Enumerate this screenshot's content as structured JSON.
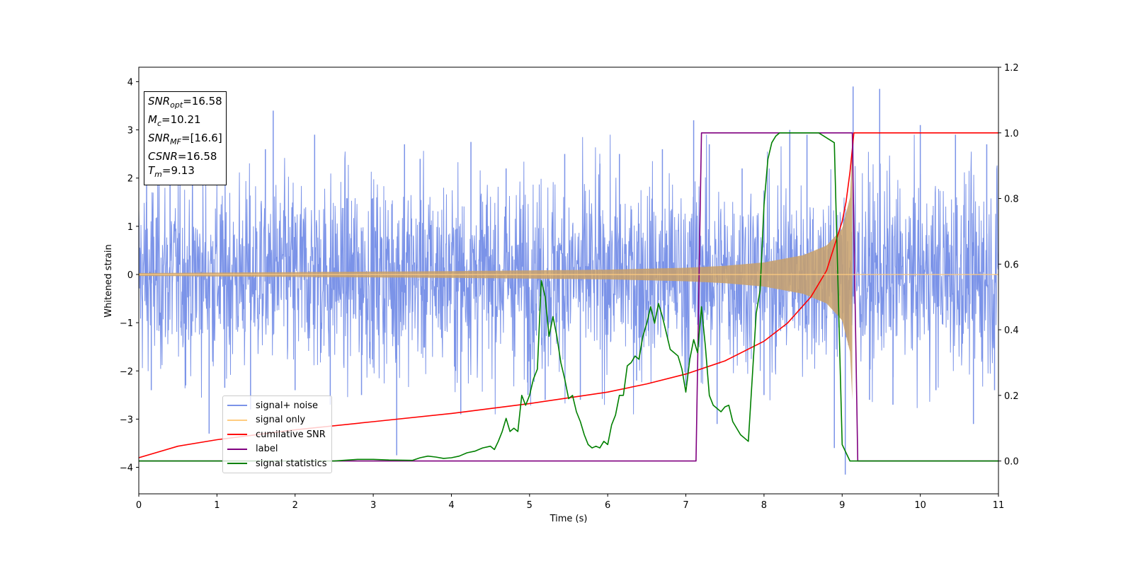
{
  "chart_data": {
    "type": "line",
    "xlabel": "Time (s)",
    "ylabel": "Whitened strain",
    "xlim": [
      0,
      11
    ],
    "ylim": [
      -4.55,
      4.3
    ],
    "y2lim": [
      -0.1,
      1.2
    ],
    "xticks": [
      "0",
      "1",
      "2",
      "3",
      "4",
      "5",
      "6",
      "7",
      "8",
      "9",
      "10",
      "11"
    ],
    "yticks": [
      {
        "value": 4,
        "label": "4"
      },
      {
        "value": 3,
        "label": "3"
      },
      {
        "value": 2,
        "label": "2"
      },
      {
        "value": 1,
        "label": "1"
      },
      {
        "value": 0,
        "label": "0"
      },
      {
        "value": -1,
        "label": "−1"
      },
      {
        "value": -2,
        "label": "−2"
      },
      {
        "value": -3,
        "label": "−3"
      },
      {
        "value": -4,
        "label": "−4"
      }
    ],
    "y2ticks": [
      {
        "value": 1.2,
        "label": "1.2"
      },
      {
        "value": 1.0,
        "label": "1.0"
      },
      {
        "value": 0.8,
        "label": "0.8"
      },
      {
        "value": 0.6,
        "label": "0.6"
      },
      {
        "value": 0.4,
        "label": "0.4"
      },
      {
        "value": 0.2,
        "label": "0.2"
      },
      {
        "value": 0.0,
        "label": "0.0"
      }
    ],
    "grid": false,
    "legend_position": "lower-left",
    "noise_spikes": [
      {
        "x": 0.1,
        "y": 2.0
      },
      {
        "x": 0.16,
        "y": -2.4
      },
      {
        "x": 0.4,
        "y": 2.4
      },
      {
        "x": 0.6,
        "y": -2.3
      },
      {
        "x": 0.9,
        "y": -3.3
      },
      {
        "x": 1.1,
        "y": -2.35
      },
      {
        "x": 1.43,
        "y": -2.8
      },
      {
        "x": 1.62,
        "y": 2.6
      },
      {
        "x": 1.72,
        "y": 3.4
      },
      {
        "x": 2.0,
        "y": -2.4
      },
      {
        "x": 2.25,
        "y": 2.9
      },
      {
        "x": 2.45,
        "y": -2.7
      },
      {
        "x": 2.85,
        "y": -2.5
      },
      {
        "x": 3.3,
        "y": -3.75
      },
      {
        "x": 3.4,
        "y": 2.7
      },
      {
        "x": 3.6,
        "y": 2.4
      },
      {
        "x": 4.12,
        "y": -2.9
      },
      {
        "x": 4.25,
        "y": 2.75
      },
      {
        "x": 4.7,
        "y": 2.2
      },
      {
        "x": 4.98,
        "y": -2.5
      },
      {
        "x": 5.2,
        "y": -2.6
      },
      {
        "x": 5.45,
        "y": 2.5
      },
      {
        "x": 5.65,
        "y": -2.6
      },
      {
        "x": 5.9,
        "y": 2.3
      },
      {
        "x": 6.15,
        "y": 2.5
      },
      {
        "x": 6.37,
        "y": -2.2
      },
      {
        "x": 6.7,
        "y": 2.6
      },
      {
        "x": 7.0,
        "y": -2.3
      },
      {
        "x": 7.1,
        "y": 3.2
      },
      {
        "x": 7.3,
        "y": 2.7
      },
      {
        "x": 7.4,
        "y": -3.1
      },
      {
        "x": 7.72,
        "y": 2.2
      },
      {
        "x": 8.0,
        "y": -2.5
      },
      {
        "x": 8.33,
        "y": 3.0
      },
      {
        "x": 8.55,
        "y": 2.9
      },
      {
        "x": 8.9,
        "y": -3.6
      },
      {
        "x": 9.04,
        "y": -4.15
      },
      {
        "x": 9.14,
        "y": 3.9
      },
      {
        "x": 9.35,
        "y": -2.6
      },
      {
        "x": 9.48,
        "y": 3.85
      },
      {
        "x": 9.65,
        "y": -2.7
      },
      {
        "x": 10.0,
        "y": 3.1
      },
      {
        "x": 10.2,
        "y": -2.4
      },
      {
        "x": 10.45,
        "y": 2.9
      },
      {
        "x": 10.68,
        "y": -3.1
      },
      {
        "x": 10.85,
        "y": 2.7
      },
      {
        "x": 10.95,
        "y": -2.4
      }
    ],
    "series": [
      {
        "name": "signal+ noise",
        "color": "#7b93e8",
        "axis": "left",
        "typical_amplitude": 1.0,
        "x": [
          0,
          11
        ]
      },
      {
        "name": "signal only",
        "color": "#ffcc80",
        "axis": "left",
        "envelope": [
          {
            "x": 0.0,
            "y": 0.03
          },
          {
            "x": 2.0,
            "y": 0.05
          },
          {
            "x": 4.0,
            "y": 0.07
          },
          {
            "x": 6.0,
            "y": 0.1
          },
          {
            "x": 7.0,
            "y": 0.14
          },
          {
            "x": 7.5,
            "y": 0.18
          },
          {
            "x": 8.0,
            "y": 0.25
          },
          {
            "x": 8.5,
            "y": 0.4
          },
          {
            "x": 8.8,
            "y": 0.6
          },
          {
            "x": 9.0,
            "y": 0.95
          },
          {
            "x": 9.1,
            "y": 1.6
          },
          {
            "x": 9.13,
            "y": 2.6
          },
          {
            "x": 9.15,
            "y": 0.0
          },
          {
            "x": 11.0,
            "y": 0.0
          }
        ],
        "merger_time": 9.13
      },
      {
        "name": "cumilative SNR",
        "color": "#ff0000",
        "axis": "right",
        "x": [
          0,
          0.5,
          1,
          2,
          3,
          4,
          5,
          6,
          6.5,
          7,
          7.5,
          8,
          8.3,
          8.6,
          8.8,
          9.0,
          9.05,
          9.1,
          9.13,
          9.15,
          11
        ],
        "y": [
          0.01,
          0.045,
          0.065,
          0.095,
          0.12,
          0.145,
          0.175,
          0.21,
          0.235,
          0.265,
          0.305,
          0.365,
          0.42,
          0.5,
          0.58,
          0.73,
          0.79,
          0.88,
          0.95,
          1.0,
          1.0
        ]
      },
      {
        "name": "label",
        "color": "#800080",
        "axis": "right",
        "x": [
          0,
          7.13,
          7.2,
          9.13,
          9.2,
          11
        ],
        "y": [
          0,
          0,
          1,
          1,
          0,
          0
        ]
      },
      {
        "name": "signal statistics",
        "color": "#008000",
        "axis": "right",
        "x": [
          0,
          0.5,
          1,
          1.5,
          2,
          2.5,
          2.8,
          3.0,
          3.2,
          3.5,
          3.6,
          3.7,
          3.8,
          3.9,
          4.0,
          4.1,
          4.2,
          4.3,
          4.4,
          4.5,
          4.55,
          4.6,
          4.65,
          4.7,
          4.75,
          4.8,
          4.85,
          4.9,
          4.95,
          5.0,
          5.05,
          5.1,
          5.15,
          5.2,
          5.25,
          5.3,
          5.35,
          5.4,
          5.45,
          5.5,
          5.55,
          5.6,
          5.65,
          5.7,
          5.75,
          5.8,
          5.85,
          5.9,
          5.95,
          6.0,
          6.05,
          6.1,
          6.15,
          6.2,
          6.25,
          6.3,
          6.35,
          6.4,
          6.45,
          6.5,
          6.55,
          6.6,
          6.65,
          6.7,
          6.75,
          6.8,
          6.85,
          6.9,
          6.95,
          7.0,
          7.05,
          7.1,
          7.15,
          7.2,
          7.25,
          7.3,
          7.35,
          7.4,
          7.45,
          7.5,
          7.55,
          7.6,
          7.7,
          7.8,
          7.9,
          7.95,
          8.0,
          8.05,
          8.1,
          8.15,
          8.2,
          8.25,
          8.3,
          8.35,
          8.4,
          8.5,
          8.7,
          8.9,
          9.0,
          9.1,
          9.15,
          9.2,
          9.25,
          9.3,
          11
        ],
        "y": [
          0.0,
          0.0,
          0.0,
          0.0,
          0.0,
          0.0,
          0.005,
          0.005,
          0.003,
          0.002,
          0.01,
          0.015,
          0.012,
          0.008,
          0.01,
          0.015,
          0.025,
          0.03,
          0.04,
          0.045,
          0.035,
          0.06,
          0.09,
          0.13,
          0.09,
          0.1,
          0.09,
          0.2,
          0.17,
          0.2,
          0.25,
          0.28,
          0.55,
          0.5,
          0.38,
          0.44,
          0.38,
          0.3,
          0.25,
          0.19,
          0.2,
          0.15,
          0.12,
          0.08,
          0.05,
          0.04,
          0.045,
          0.04,
          0.06,
          0.05,
          0.11,
          0.14,
          0.2,
          0.2,
          0.29,
          0.3,
          0.32,
          0.31,
          0.38,
          0.42,
          0.47,
          0.42,
          0.48,
          0.44,
          0.39,
          0.34,
          0.33,
          0.32,
          0.28,
          0.21,
          0.31,
          0.37,
          0.33,
          0.47,
          0.35,
          0.2,
          0.17,
          0.16,
          0.15,
          0.165,
          0.17,
          0.12,
          0.08,
          0.06,
          0.45,
          0.52,
          0.78,
          0.92,
          0.97,
          0.99,
          1.0,
          1.0,
          1.0,
          1.0,
          1.0,
          1.0,
          1.0,
          0.97,
          0.05,
          0.0,
          0.0,
          0.0,
          0.0,
          0.0,
          0.0
        ]
      }
    ]
  },
  "info_box": {
    "lines": [
      {
        "sym": "SNR",
        "sub": "opt",
        "val": "=16.58"
      },
      {
        "sym": "M",
        "sub": "c",
        "val": "=10.21"
      },
      {
        "sym": "SNR",
        "sub": "MF",
        "val": "=[16.6]"
      },
      {
        "sym": "CSNR",
        "sub": "",
        "val": "=16.58"
      },
      {
        "sym": "T",
        "sub": "m",
        "val": "=9.13"
      }
    ]
  },
  "legend": {
    "items": [
      {
        "label": "signal+ noise",
        "color": "#7b93e8"
      },
      {
        "label": "signal only",
        "color": "#ffcc80"
      },
      {
        "label": "cumilative SNR",
        "color": "#ff0000"
      },
      {
        "label": "label",
        "color": "#800080"
      },
      {
        "label": "signal statistics",
        "color": "#008000"
      }
    ]
  }
}
